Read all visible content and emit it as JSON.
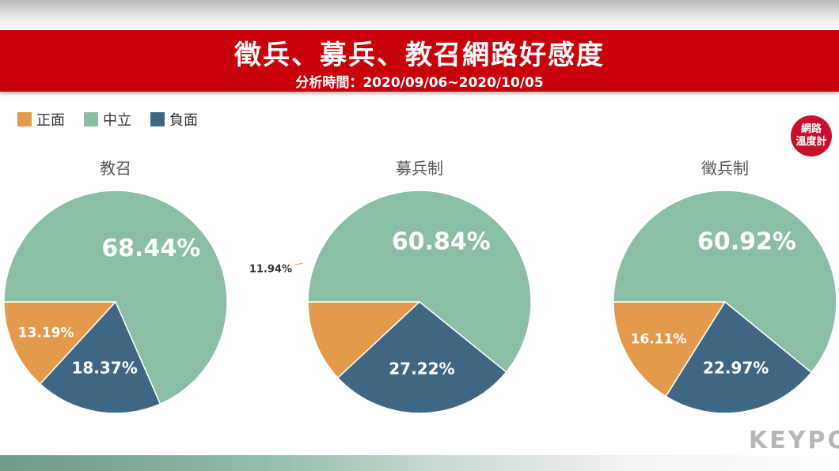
{
  "header": {
    "title": "徵兵、募兵、教召網路好感度",
    "subtitle": "分析時間：2020/09/06~2020/10/05"
  },
  "legend": [
    {
      "label": "正面",
      "color": "#e39a4c"
    },
    {
      "label": "中立",
      "color": "#8abfa5"
    },
    {
      "label": "負面",
      "color": "#3f6783"
    }
  ],
  "badge": {
    "line1": "網路",
    "line2": "溫度計"
  },
  "logo": {
    "text": "KEYPO"
  },
  "chart_data": [
    {
      "type": "pie",
      "title": "教召",
      "categories": [
        "正面",
        "中立",
        "負面"
      ],
      "values": [
        13.19,
        68.44,
        18.37
      ],
      "labels": [
        "13.19%",
        "68.44%",
        "18.37%"
      ]
    },
    {
      "type": "pie",
      "title": "募兵制",
      "categories": [
        "正面",
        "中立",
        "負面"
      ],
      "values": [
        11.94,
        60.84,
        27.22
      ],
      "labels": [
        "11.94%",
        "60.84%",
        "27.22%"
      ]
    },
    {
      "type": "pie",
      "title": "徵兵制",
      "categories": [
        "正面",
        "中立",
        "負面"
      ],
      "values": [
        16.11,
        60.92,
        22.97
      ],
      "labels": [
        "16.11%",
        "60.92%",
        "22.97%"
      ]
    }
  ]
}
